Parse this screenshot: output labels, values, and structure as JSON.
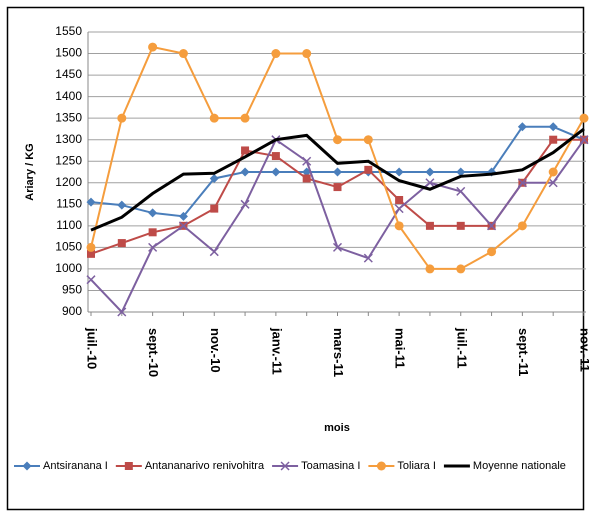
{
  "chart_data": {
    "type": "line",
    "x_label": "mois",
    "y_label": "Ariary / KG",
    "categories": [
      "juil.-10",
      null,
      "sept.-10",
      null,
      "nov.-10",
      null,
      "janv.-11",
      null,
      "mars-11",
      null,
      "mai-11",
      null,
      "juil.-11",
      null,
      "sept.-11",
      null,
      "nov.-11"
    ],
    "series": [
      {
        "name": "Antsiranana I",
        "color": "#4a7ebb",
        "marker": "diamond",
        "values": [
          1155,
          1148,
          1130,
          1122,
          1210,
          1225,
          1225,
          1225,
          1225,
          1225,
          1225,
          1225,
          1225,
          1225,
          1330,
          1330,
          1300
        ]
      },
      {
        "name": "Antananarivo renivohitra",
        "color": "#be4b48",
        "marker": "square",
        "values": [
          1035,
          1060,
          1085,
          1100,
          1140,
          1275,
          1262,
          1210,
          1190,
          1230,
          1160,
          1100,
          1100,
          1100,
          1200,
          1300,
          1300
        ]
      },
      {
        "name": "Toamasina I",
        "color": "#7d60a0",
        "marker": "x",
        "values": [
          975,
          900,
          1050,
          1100,
          1040,
          1150,
          1300,
          1250,
          1050,
          1025,
          1140,
          1200,
          1180,
          1100,
          1200,
          1200,
          1300
        ]
      },
      {
        "name": "Toliara I",
        "color": "#f59d3d",
        "marker": "circle",
        "values": [
          1050,
          1350,
          1515,
          1500,
          1350,
          1350,
          1500,
          1500,
          1300,
          1300,
          1100,
          1000,
          1000,
          1040,
          1100,
          1225,
          1350
        ]
      },
      {
        "name": "Moyenne nationale",
        "color": "#000000",
        "marker": "none",
        "values": [
          1090,
          1120,
          1175,
          1220,
          1222,
          1260,
          1300,
          1310,
          1245,
          1250,
          1205,
          1185,
          1215,
          1220,
          1230,
          1270,
          1325
        ]
      }
    ],
    "ylim": [
      900,
      1550
    ],
    "yticks": [
      900,
      950,
      1000,
      1050,
      1100,
      1150,
      1200,
      1250,
      1300,
      1350,
      1400,
      1450,
      1500,
      1550
    ],
    "grid": true,
    "legend": "bottom"
  }
}
